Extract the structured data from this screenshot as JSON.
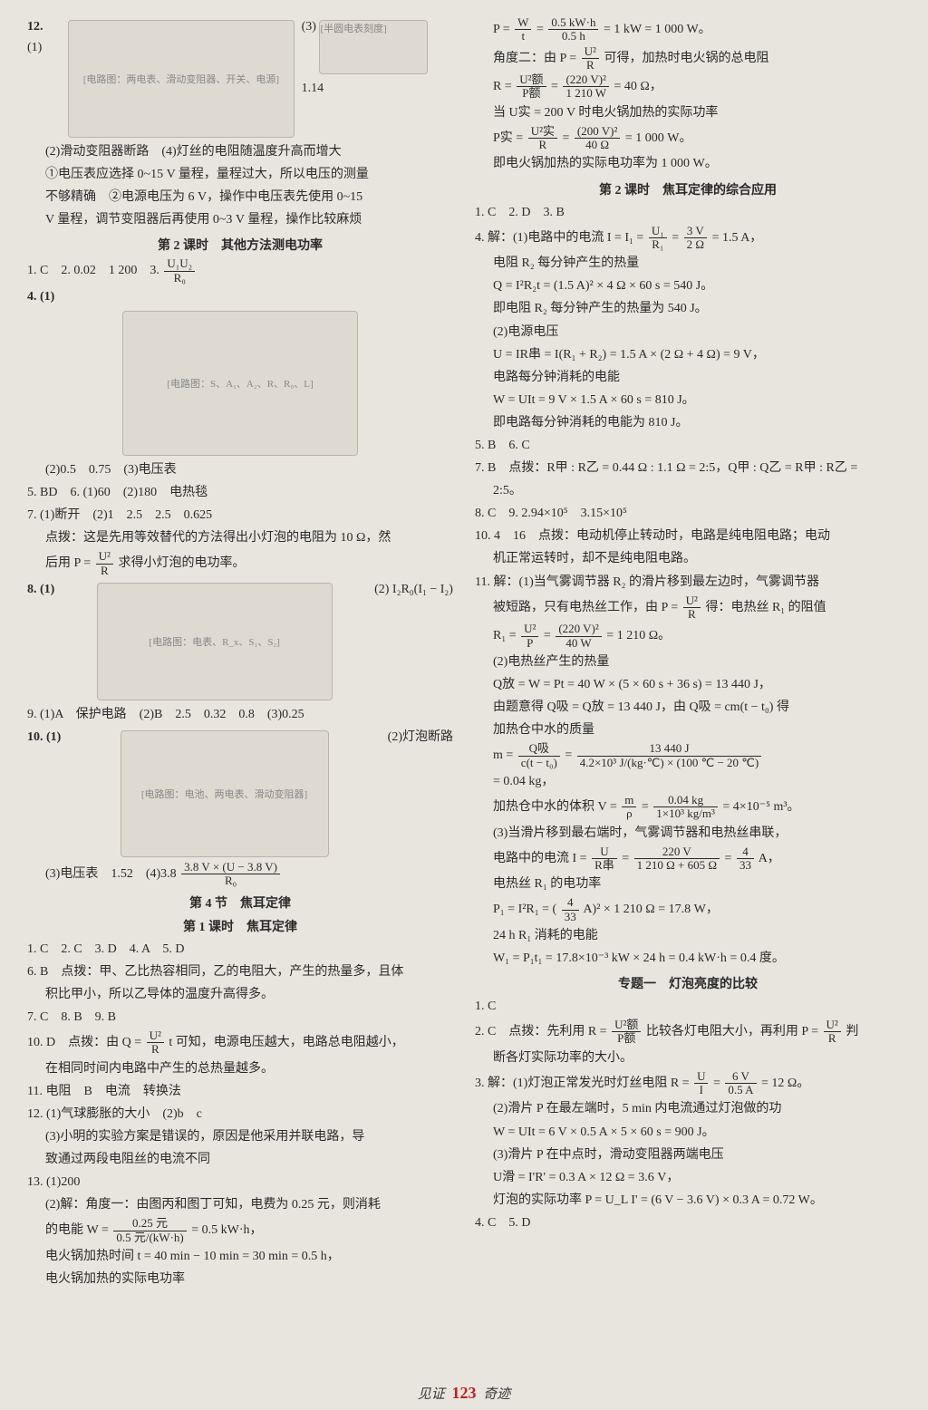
{
  "footer": {
    "left": "见证",
    "page": "123",
    "right": "奇迹"
  },
  "left": {
    "q12": {
      "label_1": "12.",
      "part1": "(1)",
      "diag1_caption": "[电路图：两电表、滑动变阻器、开关、电源]",
      "part3_label": "(3)",
      "part3_diag": "[半圆电表刻度]",
      "part3_val": "1.14",
      "part2": "(2)滑动变阻器断路　(4)灯丝的电阻随温度升高而增大",
      "note1": "①电压表应选择 0~15 V 量程，量程过大，所以电压的测量",
      "note2": "不够精确　②电源电压为 6 V，操作中电压表先使用 0~15",
      "note3": "V 量程，调节变阻器后再使用 0~3 V 量程，操作比较麻烦"
    },
    "sec2_title": "第 2 课时　其他方法测电功率",
    "sec2": {
      "a1_3": "1. C　2. 0.02　1 200　3.",
      "a3_frac_num": "U₁U₂",
      "a3_frac_den": "R₀",
      "a4_label": "4. (1)",
      "diag4_caption": "[电路图：S、A₁、A₂、R、R₀、L]",
      "a4_rest": "(2)0.5　0.75　(3)电压表",
      "a5_6": "5. BD　6. (1)60　(2)180　电热毯",
      "a7a": "7. (1)断开　(2)1　2.5　2.5　0.625",
      "a7b_pre": "点拨：这是先用等效替代的方法得出小灯泡的电阻为 10 Ω，然",
      "a7c_pre": "后用 P =",
      "a7c_num": "U²",
      "a7c_den": "R",
      "a7c_post": "求得小灯泡的电功率。",
      "a8_label": "8. (1)",
      "diag8_caption": "[电路图：电表、R_x、S₁、S₂]",
      "a8_2": "(2) I₂R₀(I₁ − I₂)",
      "a9": "9. (1)A　保护电路　(2)B　2.5　0.32　0.8　(3)0.25",
      "a10_label": "10. (1)",
      "diag10_caption": "[电路图：电池、两电表、滑动变阻器]",
      "a10_2": "(2)灯泡断路",
      "a10_3_pre": "(3)电压表　1.52　(4)3.8",
      "a10_3_num": "3.8 V × (U − 3.8 V)",
      "a10_3_den": "R₀"
    },
    "sec4_title1": "第 4 节　焦耳定律",
    "sec4_title2": "第 1 课时　焦耳定律",
    "sec4": {
      "a1_5": "1. C　2. C　3. D　4. A　5. D",
      "a6a": "6. B　点拨：甲、乙比热容相同，乙的电阻大，产生的热量多，且体",
      "a6b": "积比甲小，所以乙导体的温度升高得多。",
      "a7_9": "7. C　8. B　9. B",
      "a10_pre": "10. D　点拨：由 Q =",
      "a10_num": "U²",
      "a10_den": "R",
      "a10_post": "t 可知，电源电压越大，电路总电阻越小，",
      "a10_b": "在相同时间内电路中产生的总热量越多。",
      "a11": "11. 电阻　B　电流　转换法",
      "a12a": "12. (1)气球膨胀的大小　(2)b　c",
      "a12b": "(3)小明的实验方案是错误的，原因是他采用并联电路，导",
      "a12c": "致通过两段电阻丝的电流不同",
      "a13a": "13. (1)200",
      "a13b": "(2)解：角度一：由图丙和图丁可知，电费为 0.25 元，则消耗",
      "a13c_pre": "的电能 W =",
      "a13c_num": "0.25 元",
      "a13c_den": "0.5 元/(kW·h)",
      "a13c_post": " = 0.5 kW·h，",
      "a13d": "电火锅加热时间 t = 40 min − 10 min = 30 min = 0.5 h，",
      "a13e": "电火锅加热的实际电功率"
    }
  },
  "right": {
    "top": {
      "l1_pre": "P =",
      "l1_f1n": "W",
      "l1_f1d": "t",
      "l1_mid": " = ",
      "l1_f2n": "0.5 kW·h",
      "l1_f2d": "0.5 h",
      "l1_post": " = 1 kW = 1 000 W。",
      "l2_pre": "角度二：由 P =",
      "l2_num": "U²",
      "l2_den": "R",
      "l2_post": "可得，加热时电火锅的总电阻",
      "l3_pre": "R =",
      "l3_f1n": "U²额",
      "l3_f1d": "P额",
      "l3_mid": " = ",
      "l3_f2n": "(220 V)²",
      "l3_f2d": "1 210 W",
      "l3_post": " = 40 Ω，",
      "l4": "当 U实 = 200 V 时电火锅加热的实际功率",
      "l5_pre": "P实 =",
      "l5_f1n": "U²实",
      "l5_f1d": "R",
      "l5_mid": " = ",
      "l5_f2n": "(200 V)²",
      "l5_f2d": "40 Ω",
      "l5_post": " = 1 000 W。",
      "l6": "即电火锅加热的实际电功率为 1 000 W。"
    },
    "sec2r_title": "第 2 课时　焦耳定律的综合应用",
    "sec2r": {
      "a1_3": "1. C　2. D　3. B",
      "a4a_pre": "4. 解：(1)电路中的电流 I = I₁ =",
      "a4a_f1n": "U₁",
      "a4a_f1d": "R₁",
      "a4a_mid": " = ",
      "a4a_f2n": "3 V",
      "a4a_f2d": "2 Ω",
      "a4a_post": " = 1.5 A，",
      "a4b": "电阻 R₂ 每分钟产生的热量",
      "a4c": "Q = I²R₂t = (1.5 A)² × 4 Ω × 60 s = 540 J。",
      "a4d": "即电阻 R₂ 每分钟产生的热量为 540 J。",
      "a4e": "(2)电源电压",
      "a4f": "U = IR串 = I(R₁ + R₂) = 1.5 A × (2 Ω + 4 Ω) = 9 V，",
      "a4g": "电路每分钟消耗的电能",
      "a4h": "W = UIt = 9 V × 1.5 A × 60 s = 810 J。",
      "a4i": "即电路每分钟消耗的电能为 810 J。",
      "a5_6": "5. B　6. C",
      "a7a": "7. B　点拨：R甲 : R乙 = 0.44 Ω : 1.1 Ω = 2:5，Q甲 : Q乙 = R甲 : R乙 =",
      "a7b": "2:5。",
      "a8_9": "8. C　9. 2.94×10⁵　3.15×10⁵",
      "a10a": "10. 4　16　点拨：电动机停止转动时，电路是纯电阻电路；电动",
      "a10b": "机正常运转时，却不是纯电阻电路。",
      "a11a": "11. 解：(1)当气雾调节器 R₂ 的滑片移到最左边时，气雾调节器",
      "a11b_pre": "被短路，只有电热丝工作，由 P =",
      "a11b_num": "U²",
      "a11b_den": "R",
      "a11b_post": "得：电热丝 R₁ 的阻值",
      "a11c_pre": "R₁ =",
      "a11c_f1n": "U²",
      "a11c_f1d": "P",
      "a11c_mid": " = ",
      "a11c_f2n": "(220 V)²",
      "a11c_f2d": "40 W",
      "a11c_post": " = 1 210 Ω。",
      "a11d": "(2)电热丝产生的热量",
      "a11e": "Q放 = W = Pt = 40 W × (5 × 60 s + 36 s) = 13 440 J，",
      "a11f": "由题意得 Q吸 = Q放 = 13 440 J，由 Q吸 = cm(t − t₀) 得",
      "a11g": "加热仓中水的质量",
      "a11h_pre": "m =",
      "a11h_f1n": "Q吸",
      "a11h_f1d": "c(t − t₀)",
      "a11h_mid": " = ",
      "a11h_f2n": "13 440 J",
      "a11h_f2d": "4.2×10³ J/(kg·℃) × (100 ℃ − 20 ℃)",
      "a11i": "= 0.04 kg，",
      "a11j_pre": "加热仓中水的体积 V =",
      "a11j_f1n": "m",
      "a11j_f1d": "ρ",
      "a11j_mid": " = ",
      "a11j_f2n": "0.04 kg",
      "a11j_f2d": "1×10³ kg/m³",
      "a11j_post": " = 4×10⁻⁵ m³。",
      "a11k": "(3)当滑片移到最右端时，气雾调节器和电热丝串联，",
      "a11l_pre": "电路中的电流 I =",
      "a11l_f1n": "U",
      "a11l_f1d": "R串",
      "a11l_mid": " = ",
      "a11l_f2n": "220 V",
      "a11l_f2d": "1 210 Ω + 605 Ω",
      "a11l_mid2": " = ",
      "a11l_f3n": "4",
      "a11l_f3d": "33",
      "a11l_post": " A，",
      "a11m": "电热丝 R₁ 的电功率",
      "a11n_pre": "P₁ = I²R₁ = (",
      "a11n_num": "4",
      "a11n_den": "33",
      "a11n_post": " A)² × 1 210 Ω = 17.8 W，",
      "a11o": "24 h R₁ 消耗的电能",
      "a11p": "W₁ = P₁t₁ = 17.8×10⁻³ kW × 24 h = 0.4 kW·h = 0.4 度。"
    },
    "topic_title": "专题一　灯泡亮度的比较",
    "topic": {
      "a1": "1. C",
      "a2_pre": "2. C　点拨：先利用 R =",
      "a2_f1n": "U²额",
      "a2_f1d": "P额",
      "a2_mid": "比较各灯电阻大小，再利用 P =",
      "a2_f2n": "U²",
      "a2_f2d": "R",
      "a2_post": "判",
      "a2b": "断各灯实际功率的大小。",
      "a3a_pre": "3. 解：(1)灯泡正常发光时灯丝电阻 R =",
      "a3a_f1n": "U",
      "a3a_f1d": "I",
      "a3a_mid": " = ",
      "a3a_f2n": "6 V",
      "a3a_f2d": "0.5 A",
      "a3a_post": " = 12 Ω。",
      "a3b": "(2)滑片 P 在最左端时，5 min 内电流通过灯泡做的功",
      "a3c": "W = UIt = 6 V × 0.5 A × 5 × 60 s = 900 J。",
      "a3d": "(3)滑片 P 在中点时，滑动变阻器两端电压",
      "a3e": "U滑 = I'R' = 0.3 A × 12 Ω = 3.6 V，",
      "a3f": "灯泡的实际功率 P = U_L I' = (6 V − 3.6 V) × 0.3 A = 0.72 W。",
      "a4_5": "4. C　5. D"
    }
  }
}
